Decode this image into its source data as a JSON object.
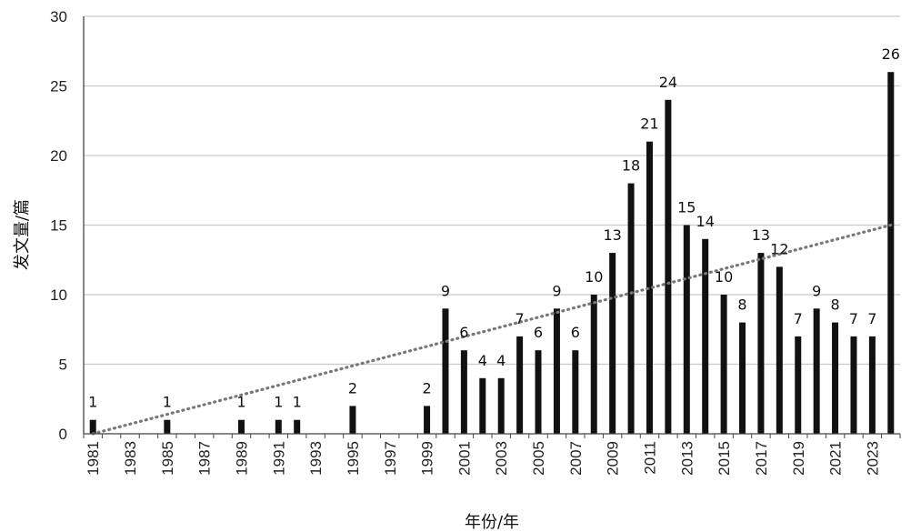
{
  "chart_data": {
    "type": "bar",
    "title": "",
    "xlabel": "年份/年",
    "ylabel": "发文量/篇",
    "ylim": [
      0,
      30
    ],
    "yticks": [
      0,
      5,
      10,
      15,
      20,
      25,
      30
    ],
    "grid": true,
    "categories": [
      "1981",
      "1982",
      "1983",
      "1984",
      "1985",
      "1986",
      "1987",
      "1988",
      "1989",
      "1990",
      "1991",
      "1992",
      "1993",
      "1994",
      "1995",
      "1996",
      "1997",
      "1998",
      "1999",
      "2000",
      "2001",
      "2002",
      "2003",
      "2004",
      "2005",
      "2006",
      "2007",
      "2008",
      "2009",
      "2010",
      "2011",
      "2012",
      "2013",
      "2014",
      "2015",
      "2016",
      "2017",
      "2018",
      "2019",
      "2020",
      "2021",
      "2022",
      "2023",
      "2024"
    ],
    "xtick_labels": [
      "1981",
      "1983",
      "1985",
      "1987",
      "1989",
      "1991",
      "1993",
      "1995",
      "1997",
      "1999",
      "2001",
      "2003",
      "2005",
      "2007",
      "2009",
      "2011",
      "2013",
      "2015",
      "2017",
      "2019",
      "2021",
      "2023"
    ],
    "values": [
      1,
      0,
      0,
      0,
      1,
      0,
      0,
      0,
      1,
      0,
      1,
      1,
      0,
      0,
      2,
      0,
      0,
      0,
      2,
      9,
      6,
      4,
      4,
      7,
      6,
      9,
      6,
      10,
      13,
      18,
      21,
      24,
      15,
      14,
      10,
      8,
      13,
      12,
      7,
      9,
      8,
      7,
      7,
      26
    ],
    "trendline": {
      "type": "linear",
      "style": "dotted",
      "from": [
        1981,
        0
      ],
      "to": [
        2024,
        15
      ]
    },
    "colors": {
      "bar": "#111111",
      "trend": "#777777",
      "grid": "#c9c9c9"
    }
  }
}
